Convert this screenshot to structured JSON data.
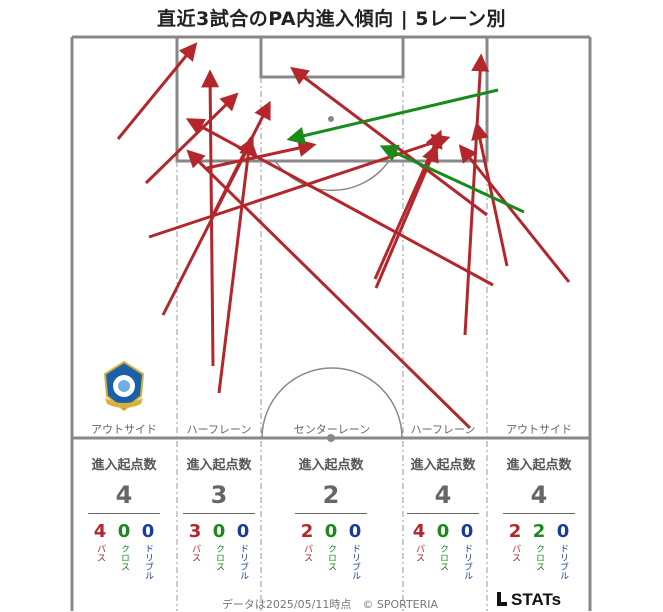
{
  "title": "直近3試合のPA内進入傾向 | 5レーン別",
  "lanes": [
    {
      "label": "アウトサイド",
      "head": "進入起点数",
      "total": "4",
      "pass": "4",
      "cross": "0",
      "dribble": "0"
    },
    {
      "label": "ハーフレーン",
      "head": "進入起点数",
      "total": "3",
      "pass": "3",
      "cross": "0",
      "dribble": "0"
    },
    {
      "label": "センターレーン",
      "head": "進入起点数",
      "total": "2",
      "pass": "2",
      "cross": "0",
      "dribble": "0"
    },
    {
      "label": "ハーフレーン",
      "head": "進入起点数",
      "total": "4",
      "pass": "4",
      "cross": "0",
      "dribble": "0"
    },
    {
      "label": "アウトサイド",
      "head": "進入起点数",
      "total": "4",
      "pass": "2",
      "cross": "2",
      "dribble": "0"
    }
  ],
  "breakdown_labels": {
    "pass": "パス",
    "cross": "クロス",
    "dribble": "ドリブル"
  },
  "colors": {
    "pass": "#b3262c",
    "cross": "#1a8a1a",
    "dribble": "#1b3c9c"
  },
  "emblem_icon": "club-crest-icon",
  "footer": "データは2025/05/11時点　© SPORTERIA",
  "brand": "STATs"
}
